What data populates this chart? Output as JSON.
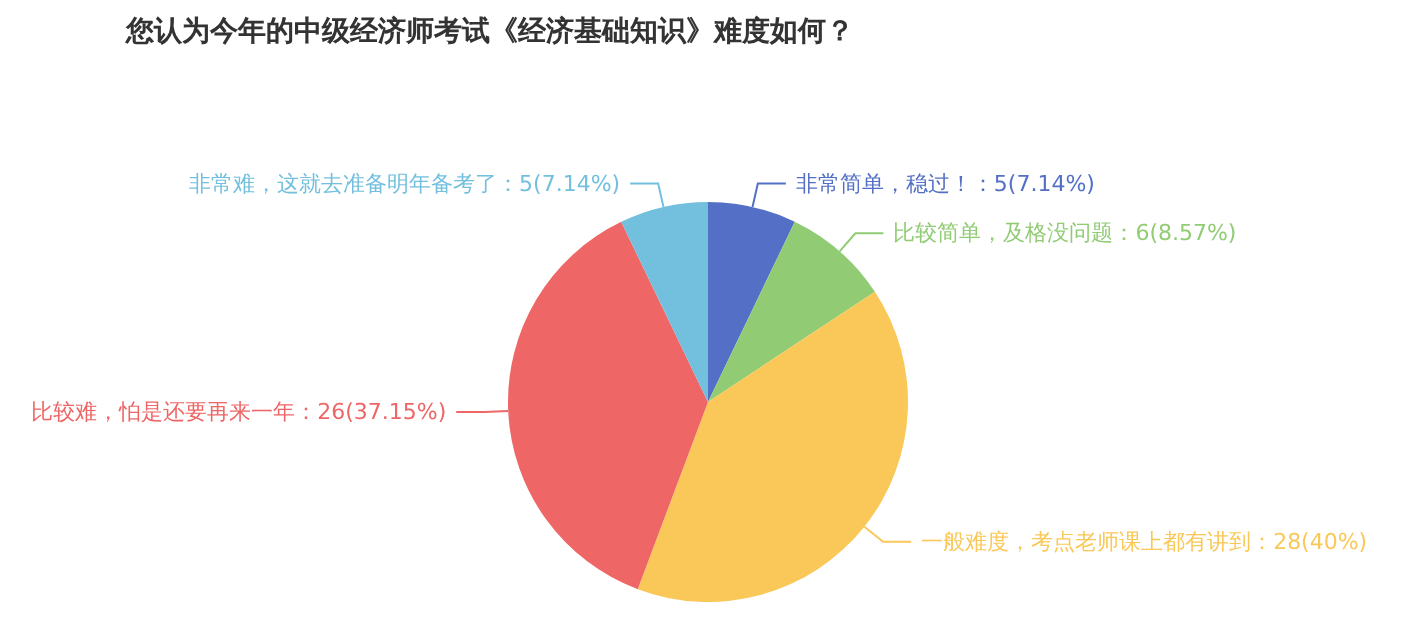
{
  "chart_data": {
    "type": "pie",
    "title": "您认为今年的中级经济师考试《经济基础知识》难度如何？",
    "categories": [
      "非常简单，稳过！",
      "比较简单，及格没问题",
      "一般难度，考点老师课上都有讲到",
      "比较难，怕是还要再来一年",
      "非常难，这就去准备明年备考了"
    ],
    "values": [
      5,
      6,
      28,
      26,
      5
    ],
    "value_labels": [
      "：5(7.14%)",
      "：6(8.57%)",
      "：28(40%)",
      "：26(37.15%)",
      "：5(7.14%)"
    ],
    "colors": [
      "#5470c6",
      "#91cc75",
      "#fac858",
      "#ee6666",
      "#73c0de"
    ]
  }
}
